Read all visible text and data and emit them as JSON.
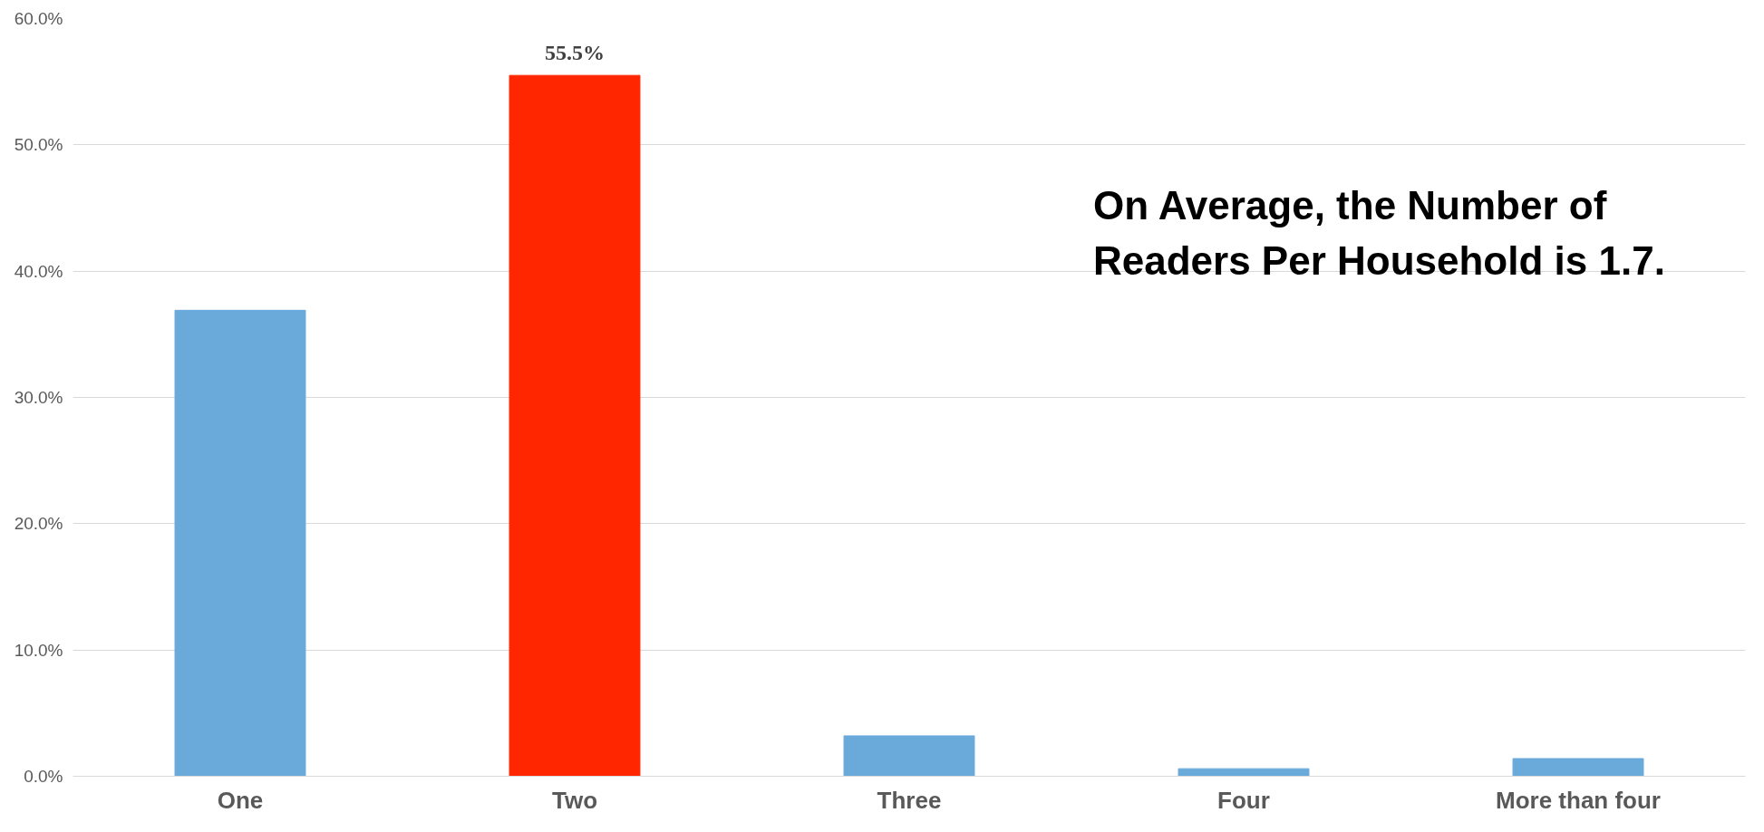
{
  "chart_data": {
    "type": "bar",
    "categories": [
      "One",
      "Two",
      "Three",
      "Four",
      "More than four"
    ],
    "values": [
      36.9,
      55.5,
      3.2,
      0.6,
      1.4
    ],
    "colors": [
      "#6aaadb",
      "#ff2600",
      "#6aaadb",
      "#6aaadb",
      "#6aaadb"
    ],
    "value_labels": [
      null,
      "55.5%",
      null,
      null,
      null
    ],
    "ylim": [
      0,
      60
    ],
    "yticks": [
      {
        "value": 0,
        "label": "0.0%"
      },
      {
        "value": 10,
        "label": "10.0%"
      },
      {
        "value": 20,
        "label": "20.0%"
      },
      {
        "value": 30,
        "label": "30.0%"
      },
      {
        "value": 40,
        "label": "40.0%"
      },
      {
        "value": 50,
        "label": "50.0%"
      },
      {
        "value": 60,
        "label": "60.0%"
      }
    ],
    "grid": "y",
    "annotations": [
      "On Average, the Number of Readers Per Household is 1.7."
    ]
  }
}
